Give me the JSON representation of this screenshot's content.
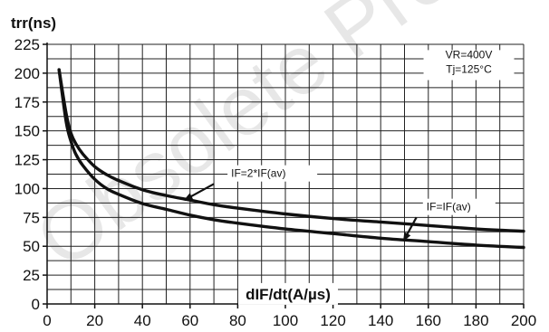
{
  "chart_data": {
    "type": "line",
    "ylabel": "trr(ns)",
    "xlabel": "dIF/dt(A/µs)",
    "xlim": [
      0,
      200
    ],
    "ylim": [
      0,
      225
    ],
    "xticks": [
      0,
      20,
      40,
      60,
      80,
      100,
      120,
      140,
      160,
      180,
      200
    ],
    "yticks": [
      0,
      25,
      50,
      75,
      100,
      125,
      150,
      175,
      200,
      225
    ],
    "grid": true,
    "conditions": [
      "VR=400V",
      "Tj=125°C"
    ],
    "watermark": "Obsolete Product",
    "series": [
      {
        "name": "IF=2*IF(av)",
        "x": [
          5,
          8,
          10,
          12,
          15,
          20,
          25,
          30,
          40,
          50,
          60,
          70,
          80,
          100,
          120,
          140,
          160,
          180,
          200
        ],
        "y": [
          203,
          165,
          148,
          139,
          130,
          119,
          112,
          107,
          99,
          94,
          90,
          86,
          83,
          78,
          74,
          71,
          68,
          65,
          63
        ]
      },
      {
        "name": "IF=IF(av)",
        "x": [
          5,
          8,
          10,
          12,
          15,
          20,
          25,
          30,
          40,
          50,
          60,
          70,
          80,
          100,
          120,
          140,
          160,
          180,
          200
        ],
        "y": [
          203,
          158,
          141,
          130,
          120,
          108,
          100,
          95,
          87,
          82,
          77,
          73,
          70,
          65,
          61,
          57,
          54,
          51,
          49
        ]
      }
    ],
    "annotations": [
      {
        "text": "IF=2*IF(av)",
        "series": 0,
        "arrow_to_x": 58
      },
      {
        "text": "IF=IF(av)",
        "series": 1,
        "arrow_to_x": 150
      }
    ]
  }
}
